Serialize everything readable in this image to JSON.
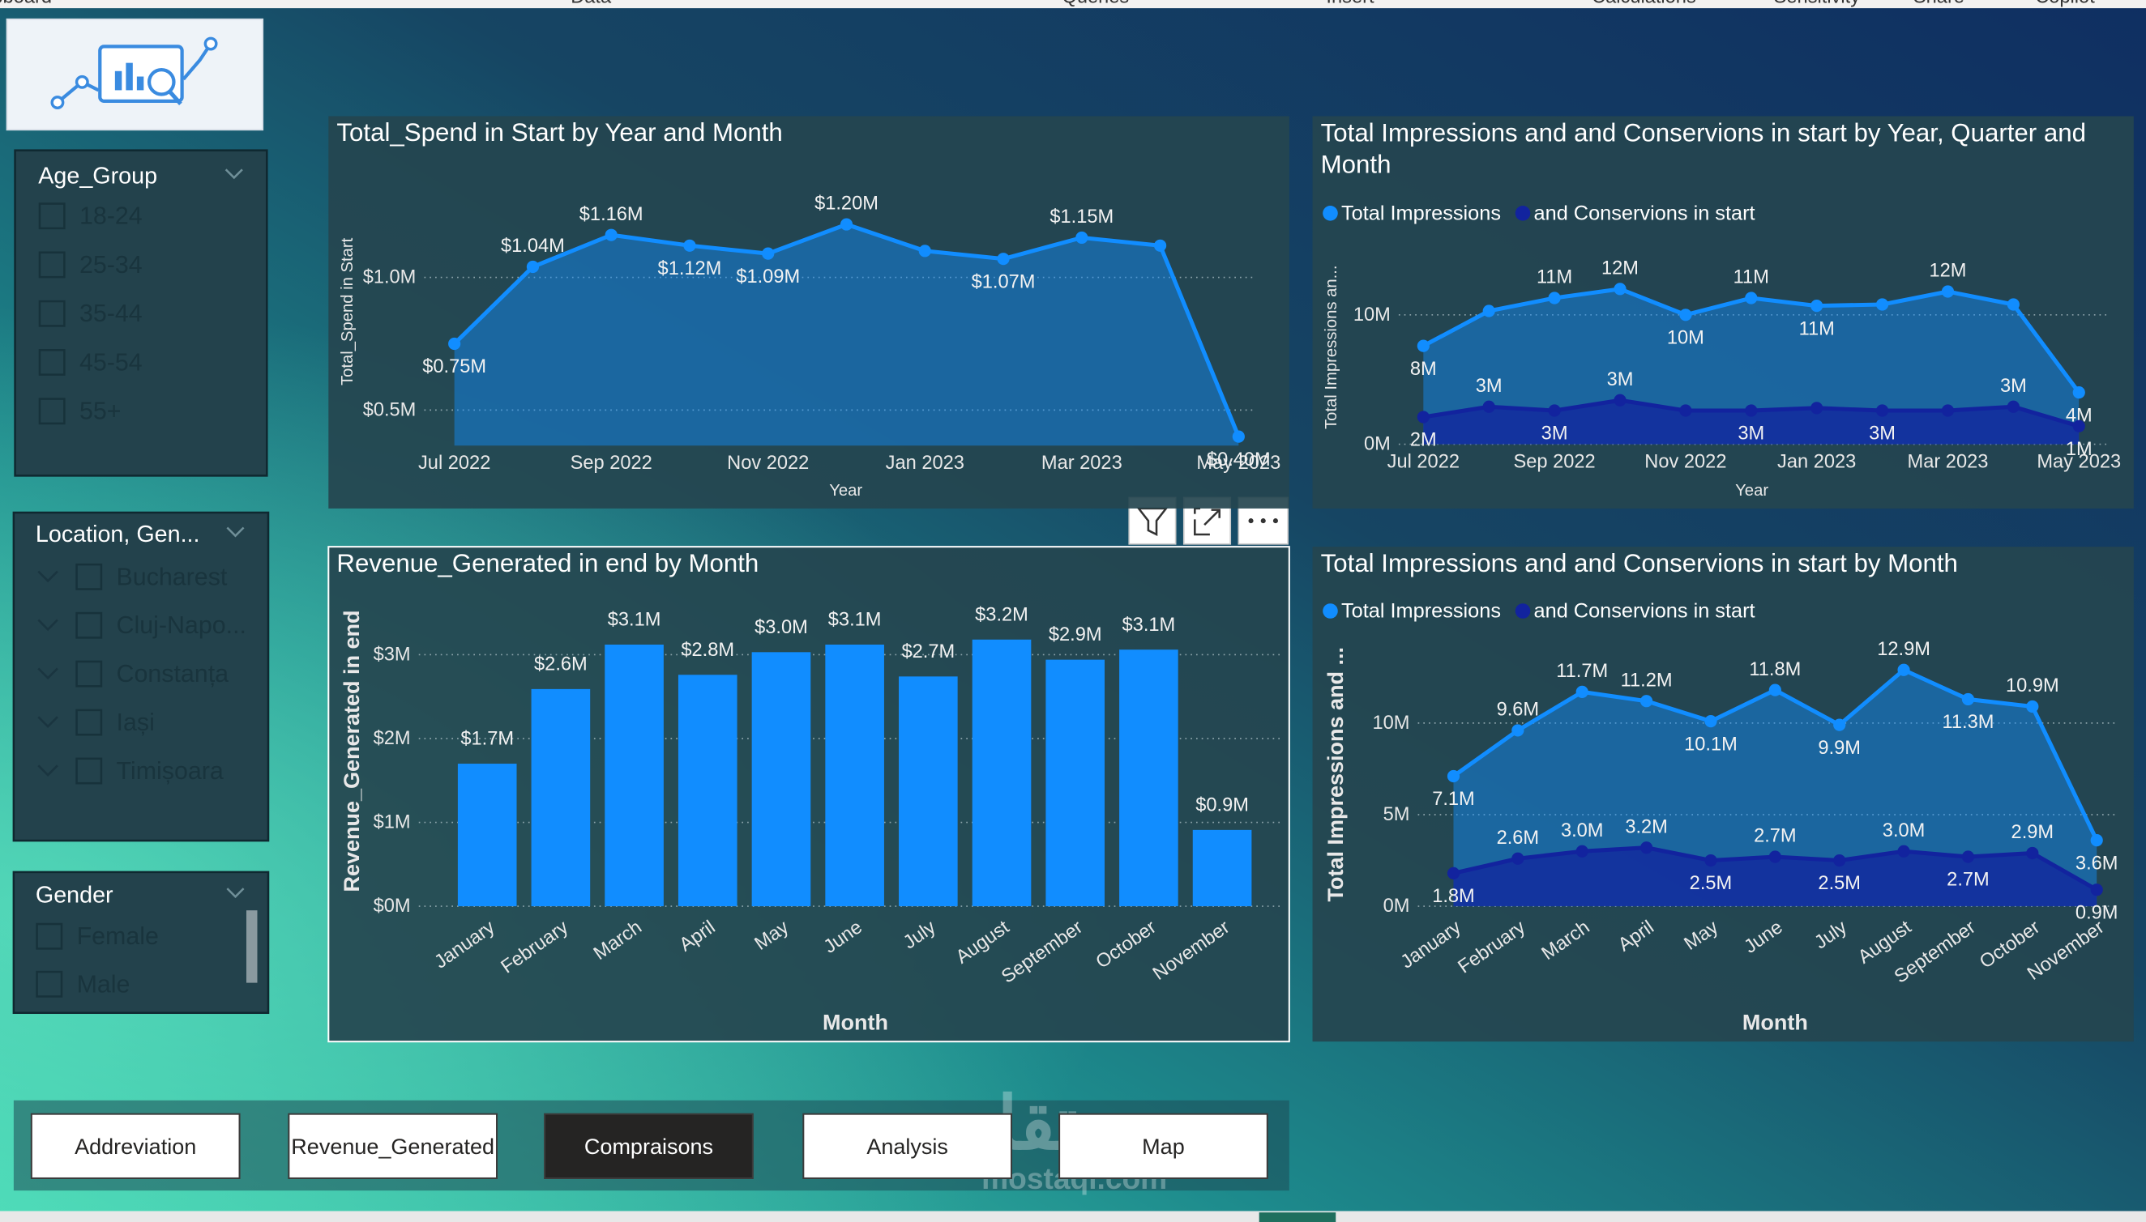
{
  "ribbon": [
    "Clipboard",
    "Data",
    "Queries",
    "Insert",
    "Calculations",
    "Sensitivity",
    "Share",
    "Copilot"
  ],
  "slicers": [
    {
      "title": "Age_Group",
      "items": [
        "18-24",
        "25-34",
        "35-44",
        "45-54",
        "55+"
      ]
    },
    {
      "title": "Location, Gen...",
      "items": [
        "Bucharest",
        "Cluj-Napo...",
        "Constanța",
        "Iași",
        "Timișoara"
      ]
    },
    {
      "title": "Gender",
      "items": [
        "Female",
        "Male"
      ]
    }
  ],
  "buttons": [
    {
      "label": "Addreviation"
    },
    {
      "label": "Revenue_Generated"
    },
    {
      "label": "Compraisons",
      "selected": true
    },
    {
      "label": "Analysis"
    },
    {
      "label": "Map"
    }
  ],
  "watermark": [
    "مستقل",
    "mostaql.com"
  ],
  "chart_data": [
    {
      "type": "area",
      "title": "Total_Spend in Start by Year and Month",
      "x_label": "Year",
      "y_label": "Total_Spend in Start",
      "categories": [
        "Jul 2022",
        null,
        "Sep 2022",
        null,
        "Nov 2022",
        null,
        "Jan 2023",
        null,
        "Mar 2023",
        null,
        "May 2023"
      ],
      "values": [
        0.75,
        1.04,
        1.16,
        1.12,
        1.09,
        1.2,
        1.1,
        1.07,
        1.15,
        1.12,
        0.4
      ],
      "value_labels": [
        "$0.75M",
        "$1.04M",
        "$1.16M",
        "$1.12M",
        "$1.09M",
        "$1.20M",
        null,
        "$1.07M",
        "$1.15M",
        null,
        "$0.40M"
      ],
      "color": "#118dff",
      "ylim": [
        0.366,
        1.376
      ],
      "yticks": [
        {
          "value": 0.5,
          "label": "$0.5M"
        },
        {
          "value": 1.0,
          "label": "$1.0M"
        }
      ],
      "grid": true
    },
    {
      "type": "area",
      "title": "Total Impressions and and Conservions in start by Year, Quarter and Month",
      "x_label": "Year",
      "y_label": "Total Impressions an...",
      "legend": "top-left",
      "categories": [
        "Jul 2022",
        null,
        "Sep 2022",
        null,
        "Nov 2022",
        null,
        "Jan 2023",
        null,
        "Mar 2023",
        null,
        "May 2023"
      ],
      "series": [
        {
          "name": "Total Impressions",
          "color": "#118dff",
          "values": [
            7.6,
            10.3,
            11.3,
            12.0,
            10.0,
            11.3,
            10.7,
            10.8,
            11.8,
            10.8,
            4.0
          ],
          "value_labels": [
            "8M",
            null,
            "11M",
            "12M",
            "10M",
            "11M",
            "11M",
            null,
            "12M",
            null,
            "4M"
          ]
        },
        {
          "name": "and Conservions in start",
          "color": "#12239e",
          "values": [
            2.1,
            2.9,
            2.6,
            3.4,
            2.6,
            2.6,
            2.8,
            2.6,
            2.6,
            2.9,
            1.4
          ],
          "value_labels": [
            "2M",
            "3M",
            "3M",
            "3M",
            null,
            "3M",
            null,
            "3M",
            null,
            "3M",
            "1M"
          ]
        }
      ],
      "ylim": [
        0,
        15
      ],
      "yticks": [
        {
          "value": 0,
          "label": "0M"
        },
        {
          "value": 10,
          "label": "10M"
        }
      ],
      "grid": true
    },
    {
      "type": "bar",
      "title": "Revenue_Generated in end by Month",
      "x_label": "Month",
      "y_label": "Revenue_Generated in end",
      "categories": [
        "January",
        "February",
        "March",
        "April",
        "May",
        "June",
        "July",
        "August",
        "September",
        "October",
        "November"
      ],
      "values": [
        1.7,
        2.59,
        3.12,
        2.76,
        3.03,
        3.12,
        2.74,
        3.18,
        2.94,
        3.06,
        0.91
      ],
      "value_labels": [
        "$1.7M",
        "$2.6M",
        "$3.1M",
        "$2.8M",
        "$3.0M",
        "$3.1M",
        "$2.7M",
        "$3.2M",
        "$2.9M",
        "$3.1M",
        "$0.9M"
      ],
      "color": "#118dff",
      "ylim": [
        0,
        3.7
      ],
      "yticks": [
        {
          "value": 0,
          "label": "$0M"
        },
        {
          "value": 1,
          "label": "$1M"
        },
        {
          "value": 2,
          "label": "$2M"
        },
        {
          "value": 3,
          "label": "$3M"
        }
      ],
      "grid": true
    },
    {
      "type": "area",
      "title": "Total Impressions and and Conservions in start by Month",
      "x_label": "Month",
      "y_label": "Total Impressions and ...",
      "legend": "top-left",
      "categories": [
        "January",
        "February",
        "March",
        "April",
        "May",
        "June",
        "July",
        "August",
        "September",
        "October",
        "November"
      ],
      "series": [
        {
          "name": "Total Impressions",
          "color": "#118dff",
          "values": [
            7.1,
            9.6,
            11.7,
            11.2,
            10.1,
            11.8,
            9.9,
            12.9,
            11.3,
            10.9,
            3.6
          ],
          "value_labels": [
            "7.1M",
            "9.6M",
            "11.7M",
            "11.2M",
            "10.1M",
            "11.8M",
            "9.9M",
            "12.9M",
            "11.3M",
            "10.9M",
            "3.6M"
          ]
        },
        {
          "name": "and Conservions in start",
          "color": "#12239e",
          "values": [
            1.8,
            2.6,
            3.0,
            3.2,
            2.5,
            2.7,
            2.5,
            3.0,
            2.7,
            2.9,
            0.9
          ],
          "value_labels": [
            "1.8M",
            "2.6M",
            "3.0M",
            "3.2M",
            "2.5M",
            "2.7M",
            "2.5M",
            "3.0M",
            "2.7M",
            "2.9M",
            "0.9M"
          ]
        }
      ],
      "ylim": [
        0,
        14.4
      ],
      "yticks": [
        {
          "value": 0,
          "label": "0M"
        },
        {
          "value": 5,
          "label": "5M"
        },
        {
          "value": 10,
          "label": "10M"
        }
      ],
      "grid": true
    }
  ]
}
